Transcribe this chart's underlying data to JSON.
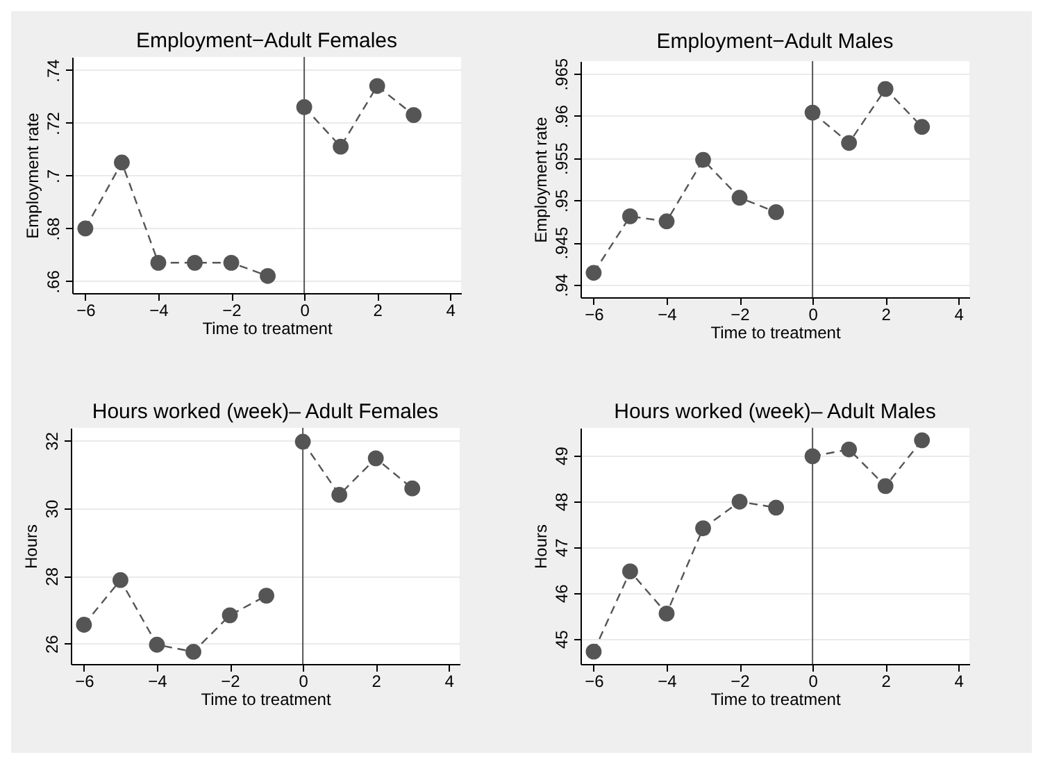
{
  "chart_data": [
    {
      "type": "line",
      "title": "Employment−Adult Females",
      "xlabel": "Time to treatment",
      "ylabel": "Employment rate",
      "xlim": [
        -6.36,
        4.3
      ],
      "xticks": [
        -6,
        -4,
        -2,
        0,
        2,
        4
      ],
      "ylim": [
        0.6555,
        0.745
      ],
      "yticks": [
        {
          "value": 0.66,
          "label": ".66"
        },
        {
          "value": 0.68,
          "label": ".68"
        },
        {
          "value": 0.7,
          "label": ".7"
        },
        {
          "value": 0.72,
          "label": ".72"
        },
        {
          "value": 0.74,
          "label": ".74"
        }
      ],
      "grid": "y",
      "marker": "circle",
      "line_style": "dashed",
      "series": [
        {
          "color": "#555555",
          "x": [
            -6,
            -5,
            -4,
            -3,
            -2,
            -1
          ],
          "values": [
            0.68,
            0.705,
            0.667,
            0.667,
            0.667,
            0.662
          ]
        },
        {
          "color": "#555555",
          "x": [
            0,
            1,
            2,
            3
          ],
          "values": [
            0.726,
            0.711,
            0.734,
            0.723
          ]
        }
      ],
      "ref_lines": [
        {
          "axis": "x",
          "value": 0,
          "color": "#555555"
        }
      ]
    },
    {
      "type": "line",
      "title": "Employment−Adult Males",
      "xlabel": "Time to treatment",
      "ylabel": "Employment rate",
      "xlim": [
        -6.36,
        4.3
      ],
      "xticks": [
        -6,
        -4,
        -2,
        0,
        2,
        4
      ],
      "ylim": [
        0.9385,
        0.9665
      ],
      "yticks": [
        {
          "value": 0.94,
          "label": ".94"
        },
        {
          "value": 0.945,
          "label": ".945"
        },
        {
          "value": 0.95,
          "label": ".95"
        },
        {
          "value": 0.955,
          "label": ".955"
        },
        {
          "value": 0.96,
          "label": ".96"
        },
        {
          "value": 0.965,
          "label": ".965"
        }
      ],
      "grid": "y",
      "marker": "circle",
      "line_style": "dashed",
      "series": [
        {
          "color": "#555555",
          "x": [
            -6,
            -5,
            -4,
            -3,
            -2,
            -1
          ],
          "values": [
            0.9414,
            0.9481,
            0.9475,
            0.9548,
            0.9503,
            0.9486
          ]
        },
        {
          "color": "#555555",
          "x": [
            0,
            1,
            2,
            3
          ],
          "values": [
            0.9604,
            0.9568,
            0.9632,
            0.9587
          ]
        }
      ],
      "ref_lines": [
        {
          "axis": "x",
          "value": 0,
          "color": "#555555"
        }
      ]
    },
    {
      "type": "line",
      "title": "Hours worked (week)– Adult Females",
      "xlabel": "Time to treatment",
      "ylabel": "Hours",
      "xlim": [
        -6.36,
        4.3
      ],
      "xticks": [
        -6,
        -4,
        -2,
        0,
        2,
        4
      ],
      "ylim": [
        25.4,
        32.38
      ],
      "yticks": [
        26,
        28,
        30,
        32
      ],
      "grid": "y",
      "marker": "circle",
      "line_style": "dashed",
      "series": [
        {
          "color": "#555555",
          "x": [
            -6,
            -5,
            -4,
            -3,
            -2,
            -1
          ],
          "values": [
            26.56,
            27.88,
            25.97,
            25.76,
            26.84,
            27.42
          ]
        },
        {
          "color": "#555555",
          "x": [
            0,
            1,
            2,
            3
          ],
          "values": [
            31.97,
            30.4,
            31.48,
            30.59
          ]
        }
      ],
      "ref_lines": [
        {
          "axis": "x",
          "value": 0,
          "color": "#555555"
        }
      ]
    },
    {
      "type": "line",
      "title": "Hours worked (week)– Adult Males",
      "xlabel": "Time to treatment",
      "ylabel": "Hours",
      "xlim": [
        -6.36,
        4.3
      ],
      "xticks": [
        -6,
        -4,
        -2,
        0,
        2,
        4
      ],
      "ylim": [
        44.45,
        49.6
      ],
      "yticks": [
        45,
        46,
        47,
        48,
        49
      ],
      "grid": "y",
      "marker": "circle",
      "line_style": "dashed",
      "series": [
        {
          "color": "#555555",
          "x": [
            -6,
            -5,
            -4,
            -3,
            -2,
            -1
          ],
          "values": [
            44.72,
            46.47,
            45.55,
            47.41,
            47.99,
            47.86
          ]
        },
        {
          "color": "#555555",
          "x": [
            0,
            1,
            2,
            3
          ],
          "values": [
            48.98,
            49.13,
            48.33,
            49.33
          ]
        }
      ],
      "ref_lines": [
        {
          "axis": "x",
          "value": 0,
          "color": "#555555"
        }
      ]
    }
  ]
}
